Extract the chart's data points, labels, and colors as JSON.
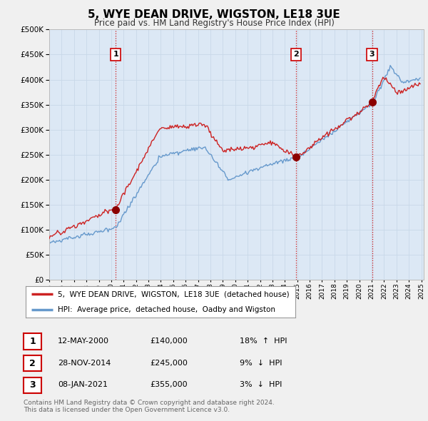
{
  "title": "5, WYE DEAN DRIVE, WIGSTON, LE18 3UE",
  "subtitle": "Price paid vs. HM Land Registry's House Price Index (HPI)",
  "ylim": [
    0,
    500000
  ],
  "ytick_vals": [
    0,
    50000,
    100000,
    150000,
    200000,
    250000,
    300000,
    350000,
    400000,
    450000,
    500000
  ],
  "sale_dates_num": [
    2000.36,
    2014.91,
    2021.03
  ],
  "sale_prices": [
    140000,
    245000,
    355000
  ],
  "sale_labels": [
    "1",
    "2",
    "3"
  ],
  "vline_color": "#cc0000",
  "sale_marker_color": "#8b0000",
  "hpi_line_color": "#6699cc",
  "price_line_color": "#cc2222",
  "plot_bg_color": "#dce8f5",
  "legend_label_price": "5,  WYE DEAN DRIVE,  WIGSTON,  LE18 3UE  (detached house)",
  "legend_label_hpi": "HPI:  Average price,  detached house,  Oadby and Wigston",
  "table_entries": [
    {
      "num": "1",
      "date": "12-MAY-2000",
      "price": "£140,000",
      "hpi": "18%  ↑  HPI"
    },
    {
      "num": "2",
      "date": "28-NOV-2014",
      "price": "£245,000",
      "hpi": "9%  ↓  HPI"
    },
    {
      "num": "3",
      "date": "08-JAN-2021",
      "price": "£355,000",
      "hpi": "3%  ↓  HPI"
    }
  ],
  "footnote": "Contains HM Land Registry data © Crown copyright and database right 2024.\nThis data is licensed under the Open Government Licence v3.0.",
  "bg_color": "#f0f0f0",
  "grid_color": "#c8d8e8"
}
